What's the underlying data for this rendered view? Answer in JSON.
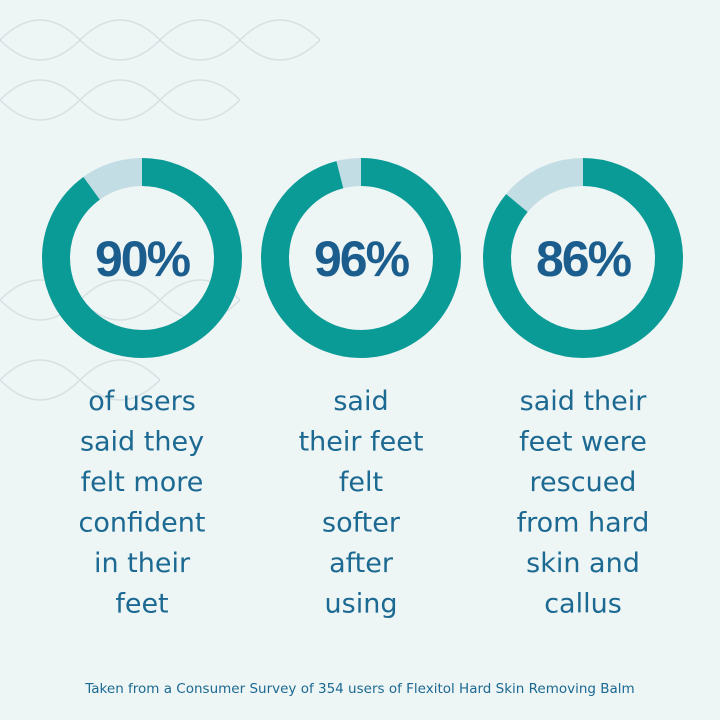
{
  "chart_data": [
    {
      "type": "donut",
      "values": [
        90
      ],
      "value_labels": [
        "90%"
      ],
      "color": "#0b9b96",
      "track_color": "#c3dde5",
      "caption": [
        "of users",
        "said they",
        "felt more",
        "confident",
        "in their",
        "feet"
      ]
    },
    {
      "type": "donut",
      "values": [
        96
      ],
      "value_labels": [
        "96%"
      ],
      "color": "#0b9b96",
      "track_color": "#c3dde5",
      "caption": [
        "said",
        "their feet",
        "felt",
        "softer",
        "after",
        "using"
      ]
    },
    {
      "type": "donut",
      "values": [
        86
      ],
      "value_labels": [
        "86%"
      ],
      "color": "#0b9b96",
      "track_color": "#c3dde5",
      "caption": [
        "said their",
        "feet were",
        "rescued",
        "from hard",
        "skin and",
        "callus"
      ]
    }
  ],
  "footnote": "Taken from a Consumer Survey of 354 users of Flexitol Hard Skin Removing Balm"
}
